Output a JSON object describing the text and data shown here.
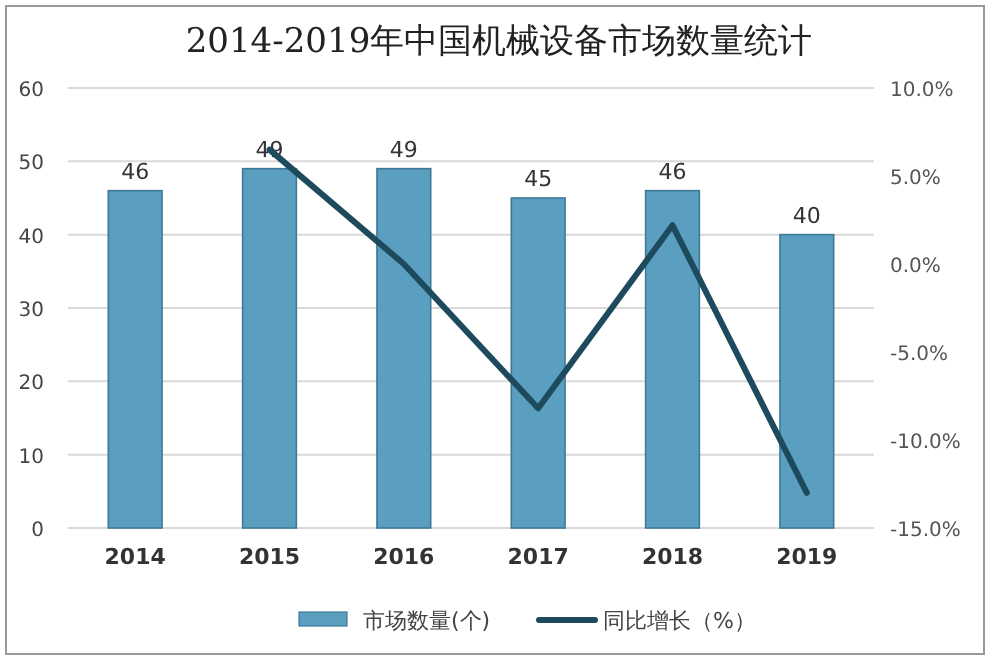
{
  "chart_data": {
    "type": "bar",
    "title": "2014-2019年中国机械设备市场数量统计",
    "categories": [
      "2014",
      "2015",
      "2016",
      "2017",
      "2018",
      "2019"
    ],
    "series": [
      {
        "name": "市场数量(个)",
        "color": "#5a9fc0",
        "values": [
          46,
          49,
          49,
          45,
          46,
          40
        ],
        "value_labels": [
          "46",
          "49",
          "49",
          "45",
          "46",
          "40"
        ]
      },
      {
        "name": "同比增长（%）",
        "type": "line",
        "axis": "y2",
        "color": "#1d4a5c",
        "values": [
          null,
          6.5,
          0,
          -8.2,
          2.2,
          -13.0
        ]
      }
    ],
    "ylim": [
      0,
      60
    ],
    "yticks": [
      0,
      10,
      20,
      30,
      40,
      50,
      60
    ],
    "y2lim": [
      -15,
      10
    ],
    "y2ticks": [
      {
        "value": -15,
        "label": "-15.0%"
      },
      {
        "value": -10,
        "label": "-10.0%"
      },
      {
        "value": -5,
        "label": "-5.0%"
      },
      {
        "value": 0,
        "label": "0.0%"
      },
      {
        "value": 5,
        "label": "5.0%"
      },
      {
        "value": 10,
        "label": "10.0%"
      }
    ],
    "grid": "y",
    "legend": "bottom"
  }
}
